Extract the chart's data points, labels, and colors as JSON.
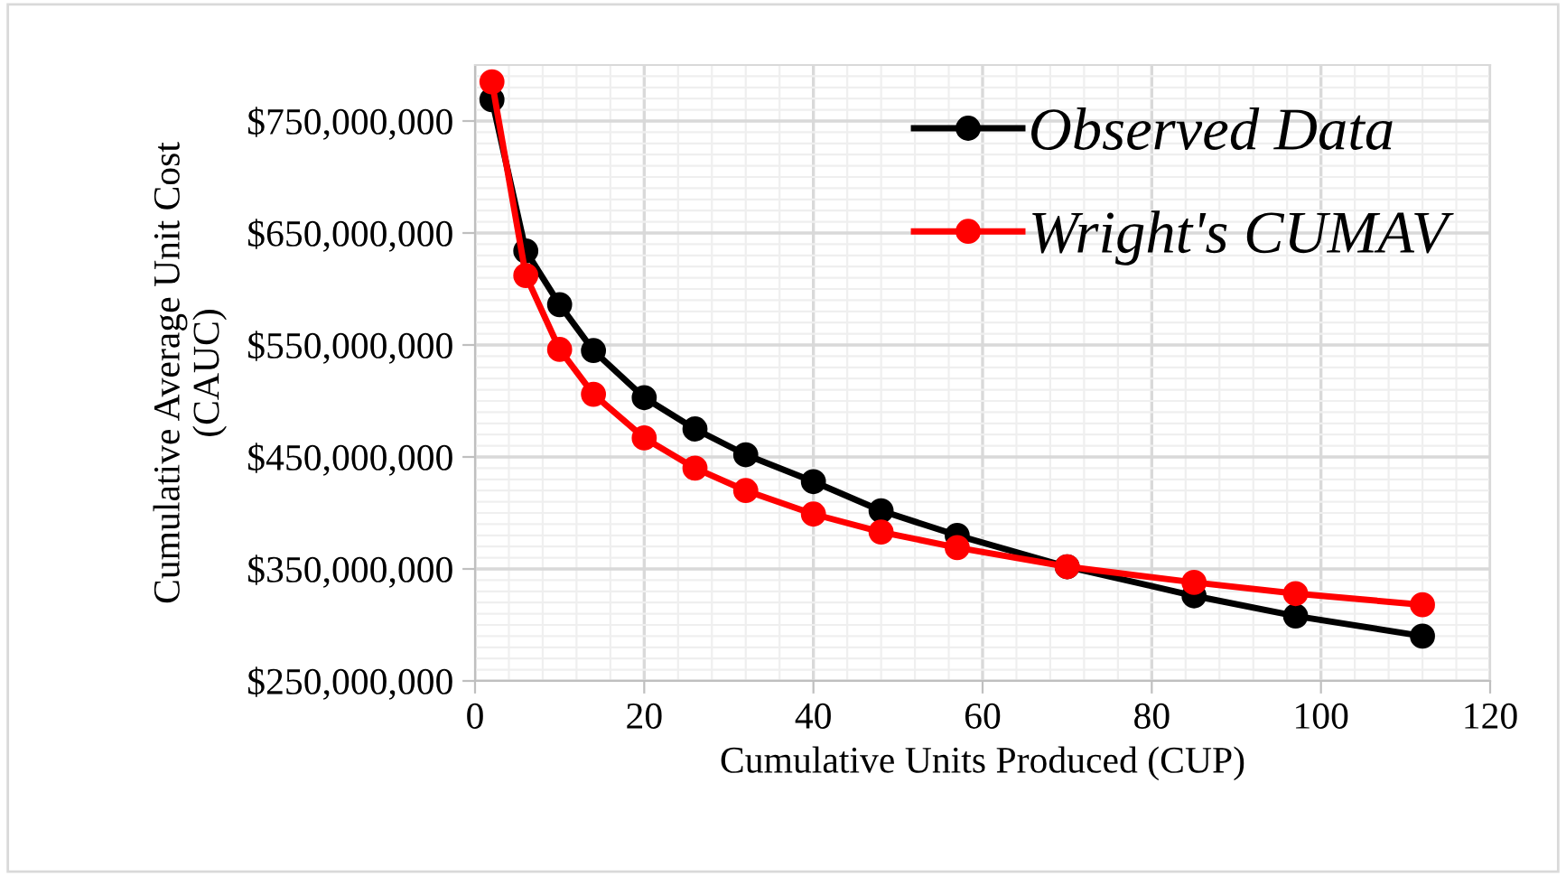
{
  "chart_data": {
    "type": "line",
    "xlabel": "Cumulative Units Produced (CUP)",
    "ylabel": "Cumulative Average Unit Cost\n(CAUC)",
    "xlim": [
      0,
      120
    ],
    "xticks": [
      0,
      20,
      40,
      60,
      80,
      100,
      120
    ],
    "ylim": [
      250000000,
      800000000
    ],
    "yticks": [
      {
        "value": 250000000,
        "label": "$250,000,000"
      },
      {
        "value": 350000000,
        "label": "$350,000,000"
      },
      {
        "value": 450000000,
        "label": "$450,000,000"
      },
      {
        "value": 550000000,
        "label": "$550,000,000"
      },
      {
        "value": 650000000,
        "label": "$650,000,000"
      },
      {
        "value": 750000000,
        "label": "$750,000,000"
      }
    ],
    "x": [
      2,
      6,
      10,
      14,
      20,
      26,
      32,
      40,
      48,
      57,
      70,
      85,
      97,
      112
    ],
    "series": [
      {
        "name": "Observed Data",
        "color": "#000000",
        "values": [
          769000000,
          634000000,
          586000000,
          545000000,
          503000000,
          475000000,
          452000000,
          428000000,
          402000000,
          380000000,
          352000000,
          326000000,
          308000000,
          290000000
        ]
      },
      {
        "name": "Wright's CUMAV",
        "color": "#ff0000",
        "values": [
          785000000,
          612000000,
          546000000,
          506000000,
          467000000,
          440000000,
          420000000,
          399000000,
          383000000,
          369000000,
          352000000,
          338000000,
          328000000,
          318000000
        ]
      }
    ],
    "marker": "circle",
    "line_style": "solid",
    "grid": true,
    "legend": "top right"
  }
}
